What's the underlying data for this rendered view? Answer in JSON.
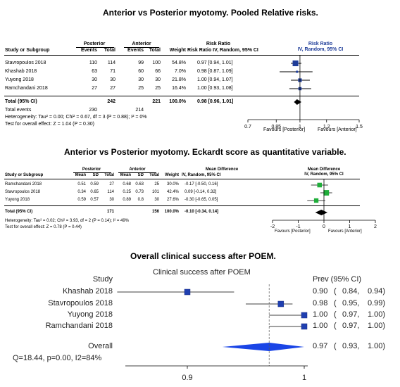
{
  "chart_data": [
    {
      "type": "forest",
      "title": "Anterior vs Posterior myotomy. Pooled Relative risks.",
      "group_headers": [
        "Posterior",
        "Anterior"
      ],
      "col_headers": [
        "Study or Subgroup",
        "Events",
        "Total",
        "Events",
        "Total",
        "Weight",
        "Risk Ratio IV, Random, 95% CI"
      ],
      "plot_header": [
        "Risk Ratio",
        "IV, Random, 95% CI"
      ],
      "studies": [
        {
          "name": "Stavropoulos 2018",
          "e1": "110",
          "t1": "114",
          "e2": "99",
          "t2": "100",
          "weight": "54.8%",
          "ci_text": "0.97 [0.94, 1.01]",
          "est": 0.97,
          "lo": 0.94,
          "hi": 1.01
        },
        {
          "name": "Khashab 2018",
          "e1": "63",
          "t1": "71",
          "e2": "60",
          "t2": "66",
          "weight": "7.0%",
          "ci_text": "0.98 [0.87, 1.09]",
          "est": 0.98,
          "lo": 0.87,
          "hi": 1.09
        },
        {
          "name": "Yuyong 2018",
          "e1": "30",
          "t1": "30",
          "e2": "30",
          "t2": "30",
          "weight": "21.8%",
          "ci_text": "1.00 [0.94, 1.07]",
          "est": 1.0,
          "lo": 0.94,
          "hi": 1.07
        },
        {
          "name": "Ramchandani 2018",
          "e1": "27",
          "t1": "27",
          "e2": "25",
          "t2": "25",
          "weight": "16.4%",
          "ci_text": "1.00 [0.93, 1.08]",
          "est": 1.0,
          "lo": 0.93,
          "hi": 1.08
        }
      ],
      "total": {
        "name": "Total (95% CI)",
        "t1": "242",
        "t2": "221",
        "weight": "100.0%",
        "ci_text": "0.98 [0.96, 1.01]",
        "est": 0.98,
        "lo": 0.96,
        "hi": 1.01
      },
      "total_events": {
        "label": "Total events",
        "e1": "230",
        "e2": "214"
      },
      "heterogeneity": "Heterogeneity: Tau² = 0.00; Chi² = 0.67, df = 3 (P = 0.88); I² = 0%",
      "overall_effect": "Test for overall effect: Z = 1.04 (P = 0.30)",
      "xlim": [
        0.7,
        1.5
      ],
      "ticks": [
        "0.7",
        "0.85",
        "1",
        "1.2",
        "1.5"
      ],
      "favours_left": "Favours [Posterior]",
      "favours_right": "Favours [Anterior]"
    },
    {
      "type": "forest",
      "title": "Anterior vs Posterior myotomy. Eckardt score as quantitative variable.",
      "group_headers": [
        "Posterior",
        "Anterior"
      ],
      "col_headers": [
        "Study or Subgroup",
        "Mean",
        "SD",
        "Total",
        "Mean",
        "SD",
        "Total",
        "Weight",
        "IV, Random, 95% CI"
      ],
      "plot_header": [
        "Mean Difference",
        "IV, Random, 95% CI"
      ],
      "mid_header": "Mean Difference",
      "studies": [
        {
          "name": "Ramchandani 2018",
          "m1": "0.51",
          "sd1": "0.59",
          "n1": "27",
          "m2": "0.68",
          "sd2": "0.63",
          "n2": "25",
          "weight": "30.0%",
          "ci_text": "-0.17 [-0.50, 0.16]",
          "est": -0.17,
          "lo": -0.5,
          "hi": 0.16
        },
        {
          "name": "Stavropoulos 2018",
          "m1": "0.34",
          "sd1": "0.65",
          "n1": "114",
          "m2": "0.25",
          "sd2": "0.73",
          "n2": "101",
          "weight": "42.4%",
          "ci_text": "0.09 [-0.14, 0.32]",
          "est": 0.09,
          "lo": -0.14,
          "hi": 0.32
        },
        {
          "name": "Yuyong 2018",
          "m1": "0.59",
          "sd1": "0.57",
          "n1": "30",
          "m2": "0.89",
          "sd2": "0.8",
          "n2": "30",
          "weight": "27.6%",
          "ci_text": "-0.30 [-0.65, 0.05]",
          "est": -0.3,
          "lo": -0.65,
          "hi": 0.05
        }
      ],
      "total": {
        "name": "Total (95% CI)",
        "n1": "171",
        "n2": "156",
        "weight": "100.0%",
        "ci_text": "-0.10 [-0.34, 0.14]",
        "est": -0.1,
        "lo": -0.34,
        "hi": 0.14
      },
      "heterogeneity": "Heterogeneity: Tau² = 0.02; Chi² = 3.93, df = 2 (P = 0.14); I² = 49%",
      "overall_effect": "Test for overall effect: Z = 0.78 (P = 0.44)",
      "xlim": [
        -2,
        2
      ],
      "ticks": [
        "-2",
        "-1",
        "0",
        "1",
        "2"
      ],
      "favours_left": "Favours [Posterior]",
      "favours_right": "Favours [Anterior]"
    },
    {
      "type": "forest",
      "title": "Overall clinical success after POEM.",
      "inner_title": "Clinical success after POEM",
      "col_study": "Study",
      "col_est": "Prev (95% CI)",
      "studies": [
        {
          "name": "Khashab 2018",
          "est_text": "0.90",
          "lo_text": "0.84",
          "hi_text": "0.94",
          "est": 0.9,
          "lo": 0.84,
          "hi": 0.94
        },
        {
          "name": "Stavropoulos 2018",
          "est_text": "0.98",
          "lo_text": "0.95",
          "hi_text": "0.99",
          "est": 0.98,
          "lo": 0.95,
          "hi": 0.99
        },
        {
          "name": "Yuyong 2018",
          "est_text": "1.00",
          "lo_text": "0.97",
          "hi_text": "1.00",
          "est": 1.0,
          "lo": 0.97,
          "hi": 1.0
        },
        {
          "name": "Ramchandani 2018",
          "est_text": "1.00",
          "lo_text": "0.97",
          "hi_text": "1.00",
          "est": 1.0,
          "lo": 0.97,
          "hi": 1.0
        }
      ],
      "overall": {
        "name": "Overall",
        "est_text": "0.97",
        "lo_text": "0.93",
        "hi_text": "1.00",
        "est": 0.97,
        "lo": 0.93,
        "hi": 1.0
      },
      "stats": "Q=18.44, p=0.00, I2=84%",
      "ticks": [
        "0.9",
        "1"
      ],
      "xlim": [
        0.85,
        1.0
      ],
      "colors": {
        "box": "#1f3fb0",
        "diamond": "#1a45e6"
      }
    }
  ]
}
